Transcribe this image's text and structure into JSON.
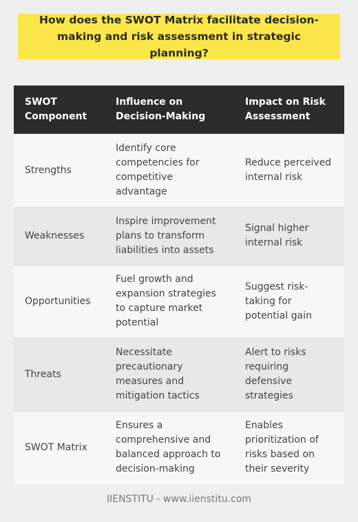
{
  "title": "How does the SWOT Matrix facilitate decision-making and risk assessment in strategic planning?",
  "table": {
    "headers": [
      "SWOT Component",
      "Influence on Decision-Making",
      "Impact on Risk Assessment"
    ],
    "rows": [
      [
        "Strengths",
        "Identify core competencies for competitive advantage",
        "Reduce perceived internal risk"
      ],
      [
        "Weaknesses",
        "Inspire improvement plans to transform liabilities into assets",
        "Signal higher internal risk"
      ],
      [
        "Opportunities",
        "Fuel growth and expansion strategies to capture market potential",
        "Suggest risk-taking for potential gain"
      ],
      [
        "Threats",
        "Necessitate precautionary measures and mitigation tactics",
        "Alert to risks requiring defensive strategies"
      ],
      [
        "SWOT Matrix",
        "Ensures a comprehensive and balanced approach to decision-making",
        "Enables prioritization of risks based on their severity"
      ]
    ]
  },
  "footer": "IIENSTITU - www.iienstitu.com",
  "colors": {
    "title_background": "#fbe74a",
    "header_background": "#2b2b2b",
    "row_light": "#f7f7f7",
    "row_dark": "#e8e8e8",
    "page_background": "#efefef"
  }
}
